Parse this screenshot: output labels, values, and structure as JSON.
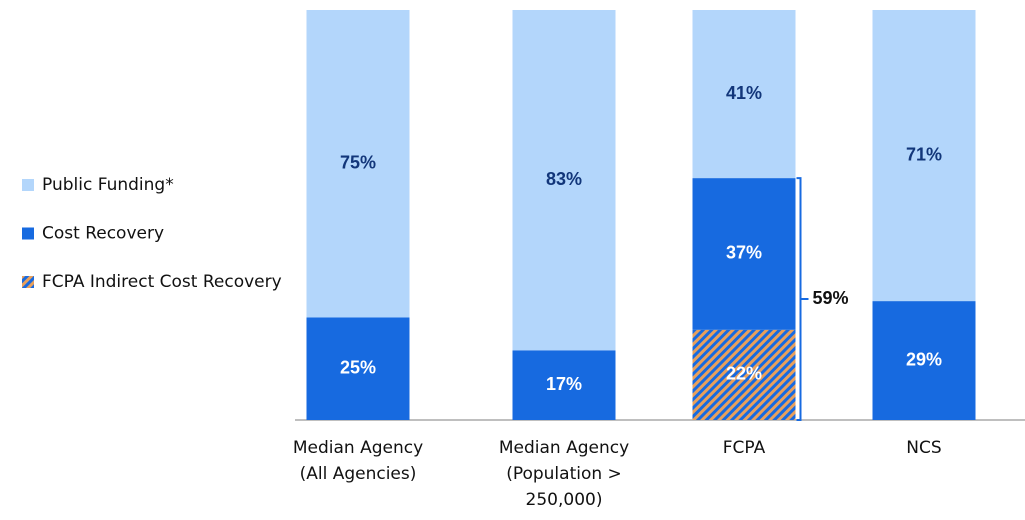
{
  "chart_data": {
    "type": "stacked-bar",
    "categories": [
      [
        "Median Agency",
        "(All Agencies)"
      ],
      [
        "Median Agency",
        "(Population >",
        "250,000)"
      ],
      [
        "FCPA"
      ],
      [
        "NCS"
      ]
    ],
    "series": [
      {
        "name": "Public Funding*",
        "color": "#b3d6fb",
        "label_color": "#12367a",
        "values": [
          75,
          83,
          41,
          71
        ],
        "value_labels": [
          "75%",
          "83%",
          "41%",
          "71%"
        ]
      },
      {
        "name": "Cost Recovery",
        "color": "#176ae0",
        "label_color": "#ffffff",
        "values": [
          25,
          17,
          37,
          29
        ],
        "value_labels": [
          "25%",
          "17%",
          "37%",
          "29%"
        ]
      },
      {
        "name": "FCPA Indirect Cost Recovery",
        "color": "#176ae0",
        "hatch": "#e8a05c",
        "label_color": "#ffffff",
        "values": [
          null,
          null,
          22,
          null
        ],
        "value_labels": [
          null,
          null,
          "22%",
          null
        ]
      }
    ],
    "bracket": {
      "category": 2,
      "value": 59,
      "label": "59%"
    },
    "ylim": [
      0,
      100
    ]
  }
}
